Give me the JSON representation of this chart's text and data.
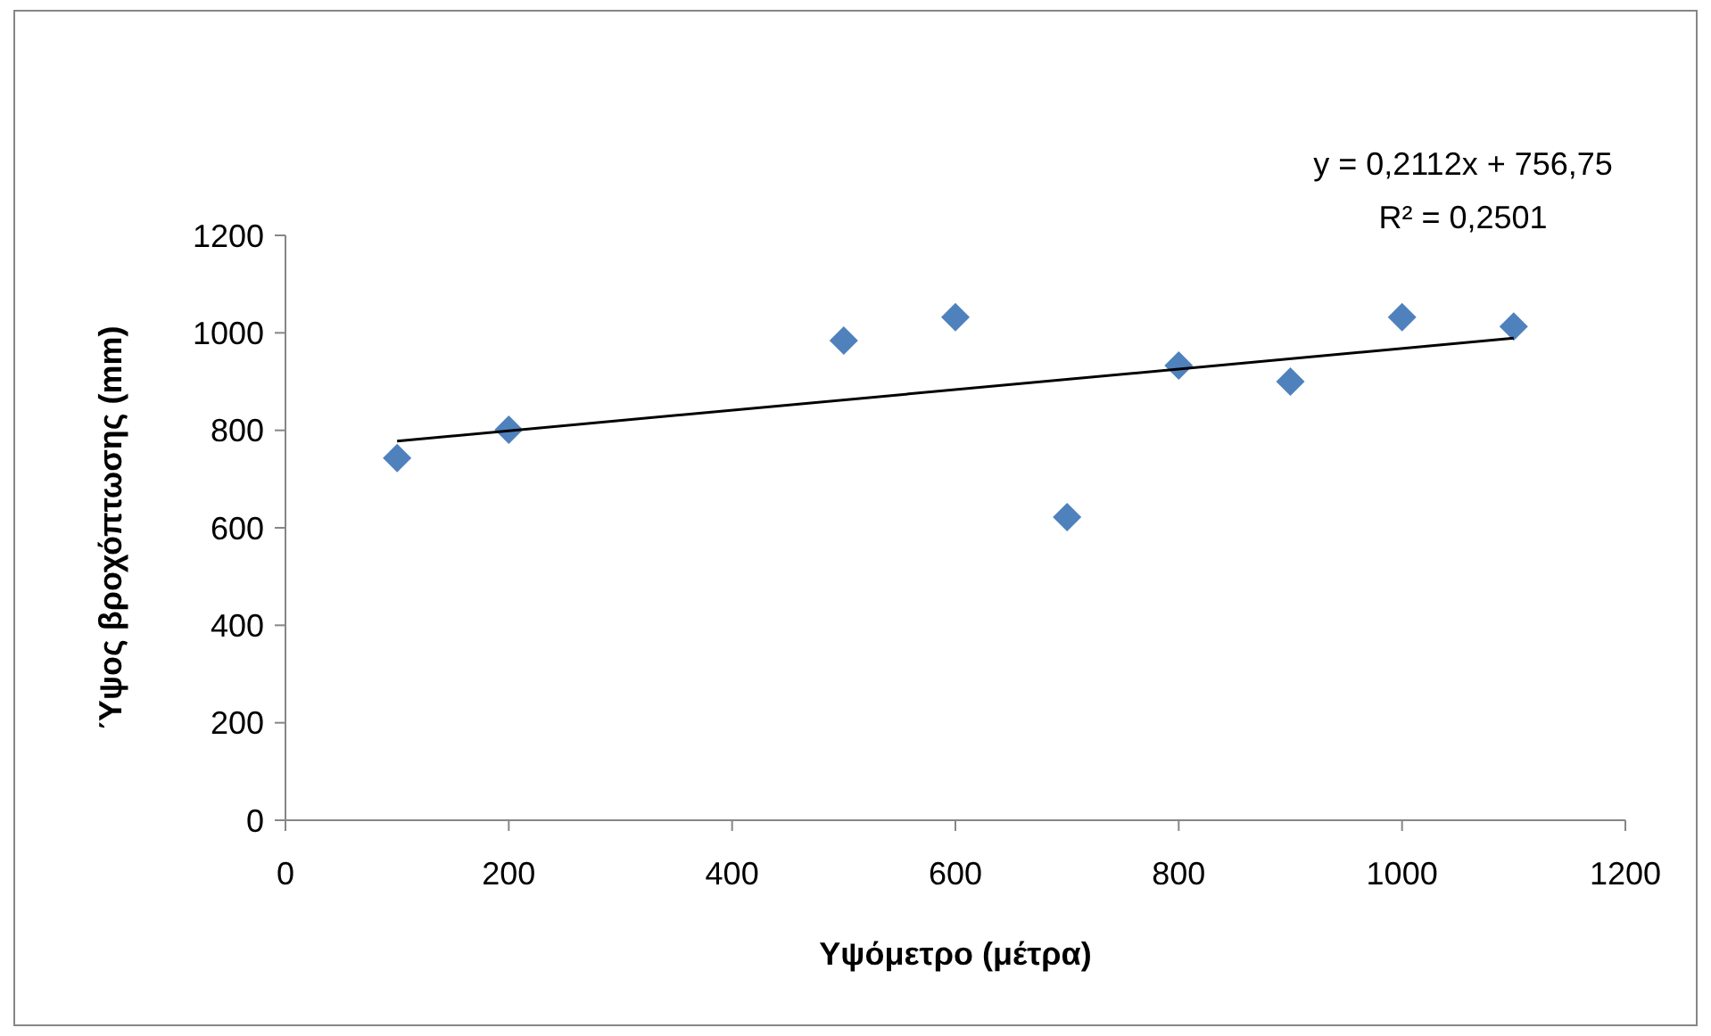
{
  "chart_data": {
    "type": "scatter",
    "xlabel": "Υψόμετρο (μέτρα)",
    "ylabel": "Ύψος βροχόπτωσης (mm)",
    "x": [
      100,
      200,
      500,
      600,
      700,
      800,
      900,
      1000,
      1100
    ],
    "series": [
      {
        "color": "#4f81bd",
        "marker": "diamond",
        "values": [
          743,
          801,
          984,
          1032,
          622,
          933,
          900,
          1032,
          1013
        ]
      },
      {
        "type": "line",
        "color": "#000000",
        "marker": "none",
        "line_style": "solid",
        "x": [
          100,
          1100
        ],
        "values": [
          778,
          989
        ]
      }
    ],
    "xlim": [
      0,
      1200
    ],
    "xticks": [
      0,
      200,
      400,
      600,
      800,
      1000,
      1200
    ],
    "ylim": [
      0,
      1200
    ],
    "yticks": [
      0,
      200,
      400,
      600,
      800,
      1000,
      1200
    ],
    "grid": false,
    "annotations": [
      "y = 0,2112x + 756,75",
      "R² = 0,2501"
    ]
  }
}
